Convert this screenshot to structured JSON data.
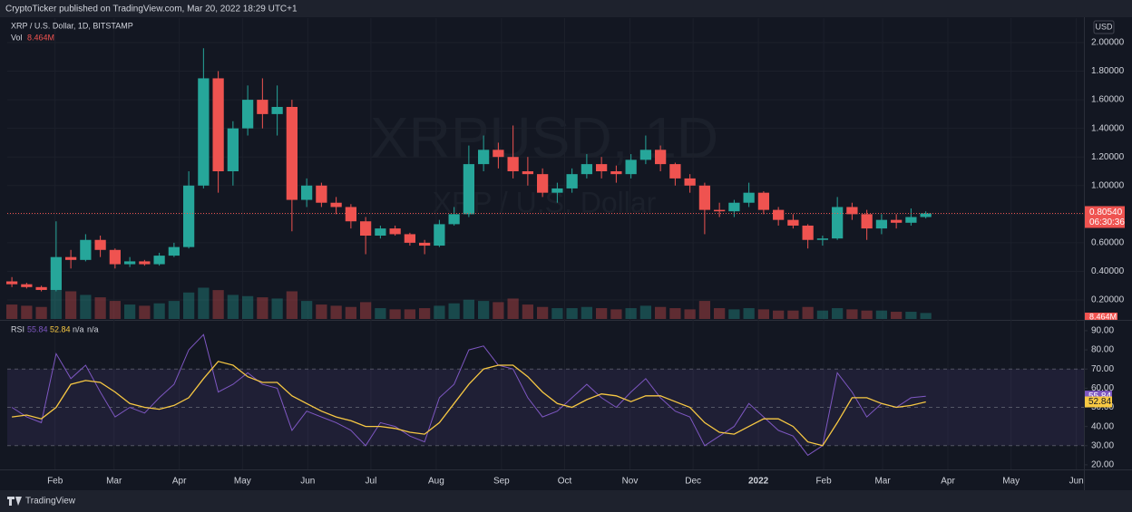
{
  "header": {
    "text": "CryptoTicker published on TradingView.com, Mar 20, 2022 18:29 UTC+1"
  },
  "footer": {
    "brand": "TradingView"
  },
  "chart_data": [
    {
      "type": "candlestick",
      "title": "XRP / U.S. Dollar, 1D, BITSTAMP",
      "watermark": "XRPUSD, 1D",
      "watermark_subtitle": "XRP / U.S. Dollar",
      "currency": "USD",
      "up_color": "#26a69a",
      "down_color": "#ef5350",
      "x": [
        7,
        14,
        21,
        28,
        35,
        42,
        49,
        56,
        63,
        70,
        77,
        84,
        91,
        98,
        105,
        112,
        119,
        126,
        133,
        140,
        147,
        154,
        161,
        168,
        175,
        182,
        189,
        196,
        203,
        210,
        217,
        224,
        231,
        238,
        245,
        252,
        259,
        266,
        273,
        280,
        287,
        294,
        301,
        308,
        315,
        322,
        329,
        336,
        343,
        350,
        357,
        364,
        371,
        378,
        385,
        392,
        399,
        406,
        413,
        420,
        427,
        434,
        441
      ],
      "open": [
        0.33,
        0.31,
        0.29,
        0.27,
        0.5,
        0.48,
        0.62,
        0.55,
        0.45,
        0.47,
        0.45,
        0.51,
        0.57,
        1.0,
        1.75,
        1.1,
        1.4,
        1.6,
        1.5,
        1.55,
        0.9,
        1.0,
        0.88,
        0.85,
        0.75,
        0.65,
        0.7,
        0.66,
        0.6,
        0.58,
        0.73,
        0.8,
        1.15,
        1.25,
        1.2,
        1.1,
        1.08,
        0.95,
        0.98,
        1.08,
        1.15,
        1.1,
        1.08,
        1.18,
        1.25,
        1.15,
        1.05,
        1.0,
        0.83,
        0.82,
        0.88,
        0.95,
        0.83,
        0.76,
        0.72,
        0.62,
        0.63,
        0.85,
        0.8,
        0.7,
        0.76,
        0.74,
        0.78
      ],
      "high": [
        0.36,
        0.32,
        0.3,
        0.75,
        0.55,
        0.66,
        0.65,
        0.56,
        0.5,
        0.48,
        0.53,
        0.6,
        1.1,
        1.96,
        1.8,
        1.45,
        1.7,
        1.75,
        1.7,
        1.6,
        1.05,
        1.02,
        0.92,
        0.87,
        0.78,
        0.72,
        0.72,
        0.67,
        0.62,
        0.76,
        0.85,
        1.28,
        1.35,
        1.3,
        1.42,
        1.2,
        1.12,
        1.02,
        1.12,
        1.22,
        1.2,
        1.14,
        1.22,
        1.35,
        1.28,
        1.16,
        1.08,
        1.02,
        0.88,
        0.9,
        1.02,
        0.96,
        0.85,
        0.8,
        0.73,
        0.65,
        0.92,
        0.88,
        0.83,
        0.8,
        0.8,
        0.84,
        0.82
      ],
      "low": [
        0.29,
        0.28,
        0.26,
        0.26,
        0.42,
        0.47,
        0.5,
        0.42,
        0.43,
        0.44,
        0.44,
        0.5,
        0.56,
        0.98,
        0.95,
        1.0,
        1.35,
        1.4,
        1.35,
        0.68,
        0.85,
        0.85,
        0.8,
        0.7,
        0.52,
        0.63,
        0.65,
        0.58,
        0.52,
        0.57,
        0.72,
        0.78,
        1.1,
        1.12,
        1.05,
        1.0,
        0.92,
        0.88,
        0.95,
        1.05,
        1.05,
        1.02,
        1.05,
        1.15,
        1.1,
        1.0,
        0.95,
        0.66,
        0.78,
        0.78,
        0.85,
        0.8,
        0.72,
        0.7,
        0.56,
        0.58,
        0.62,
        0.76,
        0.62,
        0.66,
        0.7,
        0.72,
        0.77
      ],
      "close": [
        0.31,
        0.29,
        0.27,
        0.5,
        0.48,
        0.62,
        0.55,
        0.45,
        0.47,
        0.45,
        0.51,
        0.57,
        1.0,
        1.75,
        1.1,
        1.4,
        1.6,
        1.5,
        1.55,
        0.9,
        1.0,
        0.88,
        0.85,
        0.75,
        0.65,
        0.7,
        0.66,
        0.6,
        0.58,
        0.73,
        0.8,
        1.15,
        1.25,
        1.2,
        1.1,
        1.08,
        0.95,
        0.98,
        1.08,
        1.15,
        1.1,
        1.08,
        1.18,
        1.25,
        1.15,
        1.05,
        1.0,
        0.83,
        0.82,
        0.88,
        0.95,
        0.83,
        0.76,
        0.72,
        0.62,
        0.63,
        0.85,
        0.8,
        0.7,
        0.76,
        0.74,
        0.78,
        0.8054
      ],
      "xlim": [
        8.3,
        519.6
      ],
      "xticks": [
        {
          "value": 31,
          "label": "Feb"
        },
        {
          "value": 59,
          "label": "Mar"
        },
        {
          "value": 90,
          "label": "Apr"
        },
        {
          "value": 120,
          "label": "May"
        },
        {
          "value": 151,
          "label": "Jun"
        },
        {
          "value": 181,
          "label": "Jul"
        },
        {
          "value": 212,
          "label": "Aug"
        },
        {
          "value": 243,
          "label": "Sep"
        },
        {
          "value": 273,
          "label": "Oct"
        },
        {
          "value": 304,
          "label": "Nov"
        },
        {
          "value": 334,
          "label": "Dec"
        },
        {
          "value": 365,
          "label": "2022"
        },
        {
          "value": 396,
          "label": "Feb"
        },
        {
          "value": 424,
          "label": "Mar"
        },
        {
          "value": 455,
          "label": "Apr"
        },
        {
          "value": 485,
          "label": "May"
        },
        {
          "value": 516,
          "label": "Jun"
        }
      ],
      "ylim": [
        0.067,
        2.171
      ],
      "yticks": [
        {
          "value": 0.2,
          "label": "0.20000"
        },
        {
          "value": 0.4,
          "label": "0.40000"
        },
        {
          "value": 0.6,
          "label": "0.60000"
        },
        {
          "value": 0.8,
          "label": "0.80000"
        },
        {
          "value": 1.0,
          "label": "1.00000"
        },
        {
          "value": 1.2,
          "label": "1.20000"
        },
        {
          "value": 1.4,
          "label": "1.40000"
        },
        {
          "value": 1.6,
          "label": "1.60000"
        },
        {
          "value": 1.8,
          "label": "1.80000"
        },
        {
          "value": 2.0,
          "label": "2.00000"
        }
      ],
      "last_price": {
        "value": 0.8054,
        "label": "0.80540"
      },
      "countdown": "06:30:36",
      "volume": {
        "name": "Vol",
        "last": {
          "value": 8.464,
          "label": "8.464M"
        },
        "vlim": [
          0,
          2500
        ],
        "values": [
          120,
          110,
          100,
          260,
          230,
          200,
          180,
          150,
          120,
          110,
          130,
          150,
          220,
          260,
          240,
          200,
          190,
          180,
          170,
          230,
          150,
          120,
          110,
          100,
          140,
          90,
          80,
          80,
          90,
          110,
          130,
          160,
          150,
          140,
          170,
          120,
          100,
          90,
          90,
          100,
          90,
          80,
          90,
          110,
          100,
          90,
          80,
          150,
          90,
          80,
          90,
          80,
          70,
          70,
          100,
          70,
          90,
          80,
          70,
          70,
          60,
          60,
          50
        ]
      }
    },
    {
      "type": "line",
      "title": "RSI",
      "ylim": [
        17.6,
        94.7
      ],
      "yticks": [
        {
          "value": 20,
          "label": "20.00"
        },
        {
          "value": 30,
          "label": "30.00"
        },
        {
          "value": 40,
          "label": "40.00"
        },
        {
          "value": 50,
          "label": "50.00"
        },
        {
          "value": 60,
          "label": "60.00"
        },
        {
          "value": 70,
          "label": "70.00"
        },
        {
          "value": 80,
          "label": "80.00"
        },
        {
          "value": 90,
          "label": "90.00"
        }
      ],
      "bands": [
        30,
        70
      ],
      "midline": 50,
      "extra_legend": [
        "n/a",
        "n/a"
      ],
      "series": [
        {
          "name": "RSI",
          "color": "#7e57c2",
          "values": [
            50,
            45,
            42,
            78,
            65,
            72,
            58,
            45,
            50,
            47,
            55,
            62,
            80,
            88,
            58,
            62,
            68,
            62,
            60,
            38,
            48,
            45,
            42,
            38,
            30,
            42,
            40,
            35,
            32,
            55,
            62,
            80,
            82,
            72,
            70,
            55,
            45,
            48,
            55,
            62,
            55,
            50,
            58,
            65,
            55,
            48,
            45,
            30,
            35,
            40,
            52,
            45,
            38,
            35,
            25,
            30,
            68,
            58,
            45,
            52,
            50,
            55,
            55.84
          ]
        },
        {
          "color": "#f7c843",
          "values": [
            45,
            46,
            44,
            50,
            62,
            64,
            63,
            58,
            52,
            50,
            49,
            51,
            55,
            65,
            74,
            72,
            66,
            63,
            63,
            56,
            52,
            48,
            45,
            43,
            40,
            40,
            39,
            37,
            36,
            42,
            52,
            62,
            70,
            72,
            72,
            66,
            58,
            52,
            50,
            54,
            57,
            56,
            53,
            56,
            56,
            53,
            50,
            42,
            37,
            36,
            40,
            44,
            44,
            40,
            32,
            30,
            42,
            55,
            55,
            52,
            50,
            51,
            52.84
          ]
        }
      ]
    }
  ]
}
